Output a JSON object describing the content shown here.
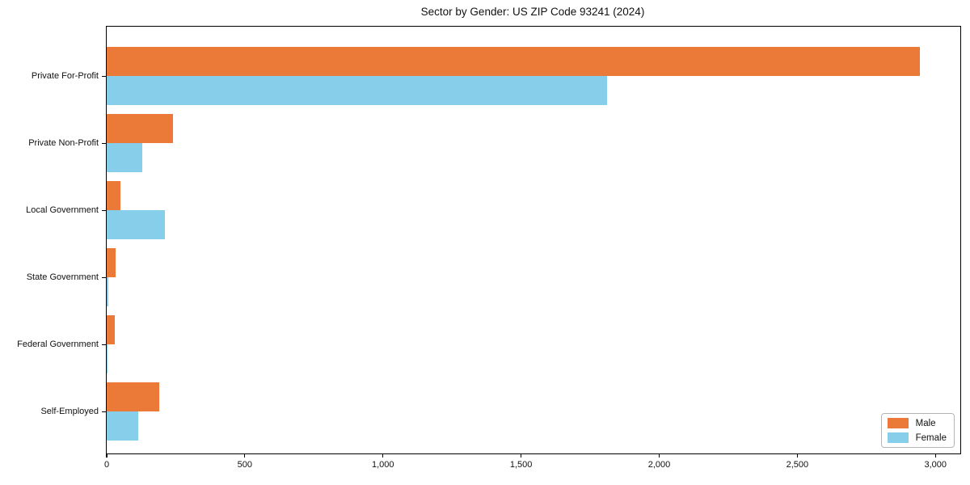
{
  "title": "Sector by Gender: US ZIP Code 93241 (2024)",
  "colors": {
    "male": "#EB7A38",
    "female": "#87CEEB",
    "frame": "#000000",
    "legend_border": "#b5b5b5"
  },
  "legend": {
    "position": "lower right",
    "items": [
      {
        "label": "Male",
        "color_key": "male"
      },
      {
        "label": "Female",
        "color_key": "female"
      }
    ]
  },
  "chart_data": {
    "type": "bar",
    "orientation": "horizontal",
    "title": "Sector by Gender: US ZIP Code 93241 (2024)",
    "xlabel": "",
    "ylabel": "",
    "grid": false,
    "categories": [
      "Private For-Profit",
      "Private Non-Profit",
      "Local Government",
      "State Government",
      "Federal Government",
      "Self-Employed"
    ],
    "series": [
      {
        "name": "Male",
        "color": "#EB7A38",
        "values": [
          2945,
          240,
          50,
          33,
          28,
          190
        ]
      },
      {
        "name": "Female",
        "color": "#87CEEB",
        "values": [
          1810,
          130,
          210,
          7,
          2,
          115
        ]
      }
    ],
    "xlim": [
      0,
      3090
    ],
    "xticks": [
      0,
      500,
      1000,
      1500,
      2000,
      2500,
      3000
    ],
    "xtick_labels": [
      "0",
      "500",
      "1,000",
      "1,500",
      "2,000",
      "2,500",
      "3,000"
    ],
    "legend_position": "lower right"
  }
}
